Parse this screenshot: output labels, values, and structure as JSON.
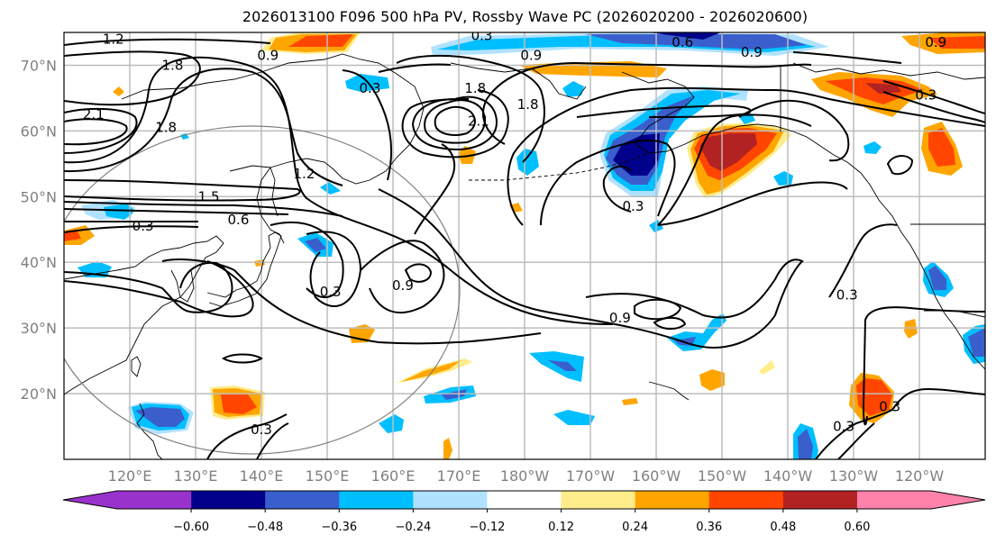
{
  "title": "2026013100 F096 500 hPa PV, Rossby Wave PC (2026020200 - 2026020600)",
  "map": {
    "projection": "cylindrical",
    "lon_range": [
      110,
      250
    ],
    "lat_range": [
      10,
      75
    ],
    "lat_ticks": [
      {
        "value": 70,
        "label": "70°N"
      },
      {
        "value": 60,
        "label": "60°N"
      },
      {
        "value": 50,
        "label": "50°N"
      },
      {
        "value": 40,
        "label": "40°N"
      },
      {
        "value": 30,
        "label": "30°N"
      },
      {
        "value": 20,
        "label": "20°N"
      }
    ],
    "lon_ticks": [
      {
        "value": 120,
        "label": "120°E"
      },
      {
        "value": 130,
        "label": "130°E"
      },
      {
        "value": 140,
        "label": "140°E"
      },
      {
        "value": 150,
        "label": "150°E"
      },
      {
        "value": 160,
        "label": "160°E"
      },
      {
        "value": 170,
        "label": "170°E"
      },
      {
        "value": 180,
        "label": "180°W"
      },
      {
        "value": 190,
        "label": "170°W"
      },
      {
        "value": 200,
        "label": "160°W"
      },
      {
        "value": 210,
        "label": "150°W"
      },
      {
        "value": 220,
        "label": "140°W"
      },
      {
        "value": 230,
        "label": "130°W"
      },
      {
        "value": 240,
        "label": "120°W"
      }
    ],
    "contour_labels": [
      {
        "text": "1.2",
        "lon": 117.5,
        "lat": 74
      },
      {
        "text": "1.8",
        "lon": 126.5,
        "lat": 70
      },
      {
        "text": "2.1",
        "lon": 114.5,
        "lat": 62.5
      },
      {
        "text": "1.8",
        "lon": 125.5,
        "lat": 60.5
      },
      {
        "text": "1.2",
        "lon": 146.5,
        "lat": 53.5
      },
      {
        "text": "1.5",
        "lon": 132,
        "lat": 50
      },
      {
        "text": "0.6",
        "lon": 136.5,
        "lat": 46.5
      },
      {
        "text": "0.3",
        "lon": 122,
        "lat": 45.5
      },
      {
        "text": "0.9",
        "lon": 141,
        "lat": 71.5
      },
      {
        "text": "0.3",
        "lon": 173.5,
        "lat": 74.5
      },
      {
        "text": "0.3",
        "lon": 156.5,
        "lat": 66.5
      },
      {
        "text": "1.8",
        "lon": 172.5,
        "lat": 66.5
      },
      {
        "text": "2.1",
        "lon": 173,
        "lat": 61.5
      },
      {
        "text": "1.8",
        "lon": 180.5,
        "lat": 64
      },
      {
        "text": "0.9",
        "lon": 181,
        "lat": 71.5
      },
      {
        "text": "0.6",
        "lon": 204,
        "lat": 73.5
      },
      {
        "text": "0.9",
        "lon": 214.5,
        "lat": 72
      },
      {
        "text": "0.9",
        "lon": 242.5,
        "lat": 73.5
      },
      {
        "text": "0.3",
        "lon": 241,
        "lat": 65.5
      },
      {
        "text": "0.3",
        "lon": 196.5,
        "lat": 48.5
      },
      {
        "text": "0.3",
        "lon": 150.5,
        "lat": 35.5
      },
      {
        "text": "0.9",
        "lon": 161.5,
        "lat": 36.5
      },
      {
        "text": "0.9",
        "lon": 194.5,
        "lat": 31.5
      },
      {
        "text": "0.3",
        "lon": 229,
        "lat": 35
      },
      {
        "text": "0.3",
        "lon": 140,
        "lat": 14.5
      },
      {
        "text": "0.3",
        "lon": 228.5,
        "lat": 15
      },
      {
        "text": "0.3",
        "lon": 235.5,
        "lat": 18
      }
    ]
  },
  "colorbar": {
    "colors": [
      "#9932cc",
      "#00008b",
      "#3a5fcd",
      "#00bfff",
      "#b0e2ff",
      "#ffffff",
      "#ffec8b",
      "#ffa500",
      "#ff4500",
      "#b22222",
      "#ff82ab"
    ],
    "levels": [
      -0.6,
      -0.48,
      -0.36,
      -0.24,
      -0.12,
      0.12,
      0.24,
      0.36,
      0.48,
      0.6
    ],
    "tick_labels": [
      "−0.60",
      "−0.48",
      "−0.36",
      "−0.24",
      "−0.12",
      "0.12",
      "0.24",
      "0.36",
      "0.48",
      "0.60"
    ],
    "extend": "both"
  }
}
